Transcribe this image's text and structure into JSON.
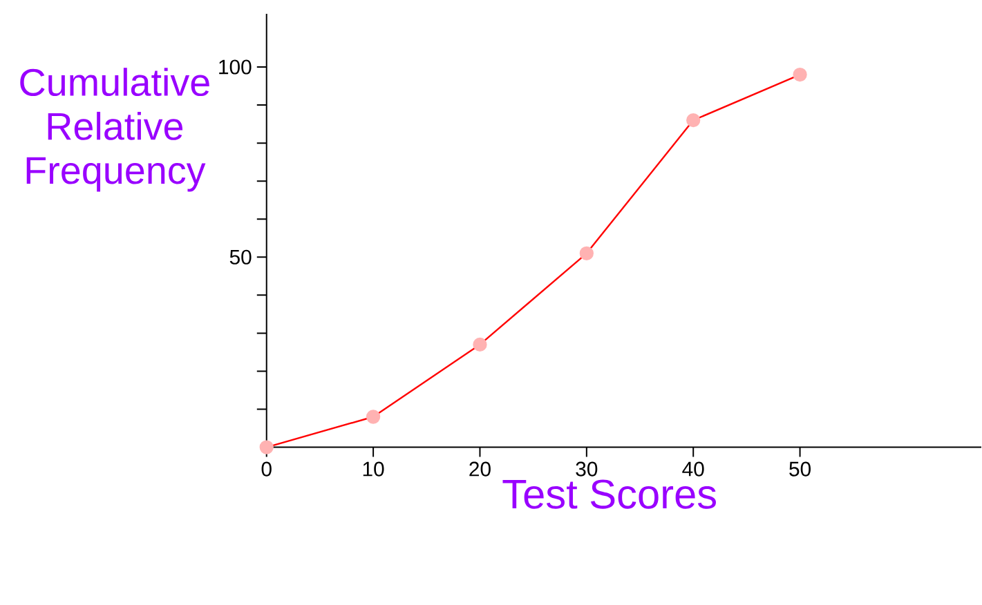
{
  "chart_data": {
    "type": "line",
    "xlabel": "Test Scores",
    "ylabel": "Cumulative Relative Frequency",
    "x": [
      0,
      10,
      20,
      30,
      40,
      50
    ],
    "series": [
      {
        "color": "#ff0000",
        "values": [
          0,
          8,
          27,
          51,
          86,
          98
        ]
      }
    ],
    "marker": "circle",
    "xlim": [
      0,
      67
    ],
    "ylim": [
      0,
      114
    ],
    "xticks": [
      0,
      10,
      20,
      30,
      40,
      50
    ],
    "yticks": [
      {
        "value": 10,
        "label": null
      },
      {
        "value": 20,
        "label": null
      },
      {
        "value": 30,
        "label": null
      },
      {
        "value": 40,
        "label": null
      },
      50,
      {
        "value": 60,
        "label": null
      },
      {
        "value": 70,
        "label": null
      },
      {
        "value": 80,
        "label": null
      },
      {
        "value": 90,
        "label": null
      },
      100
    ]
  }
}
